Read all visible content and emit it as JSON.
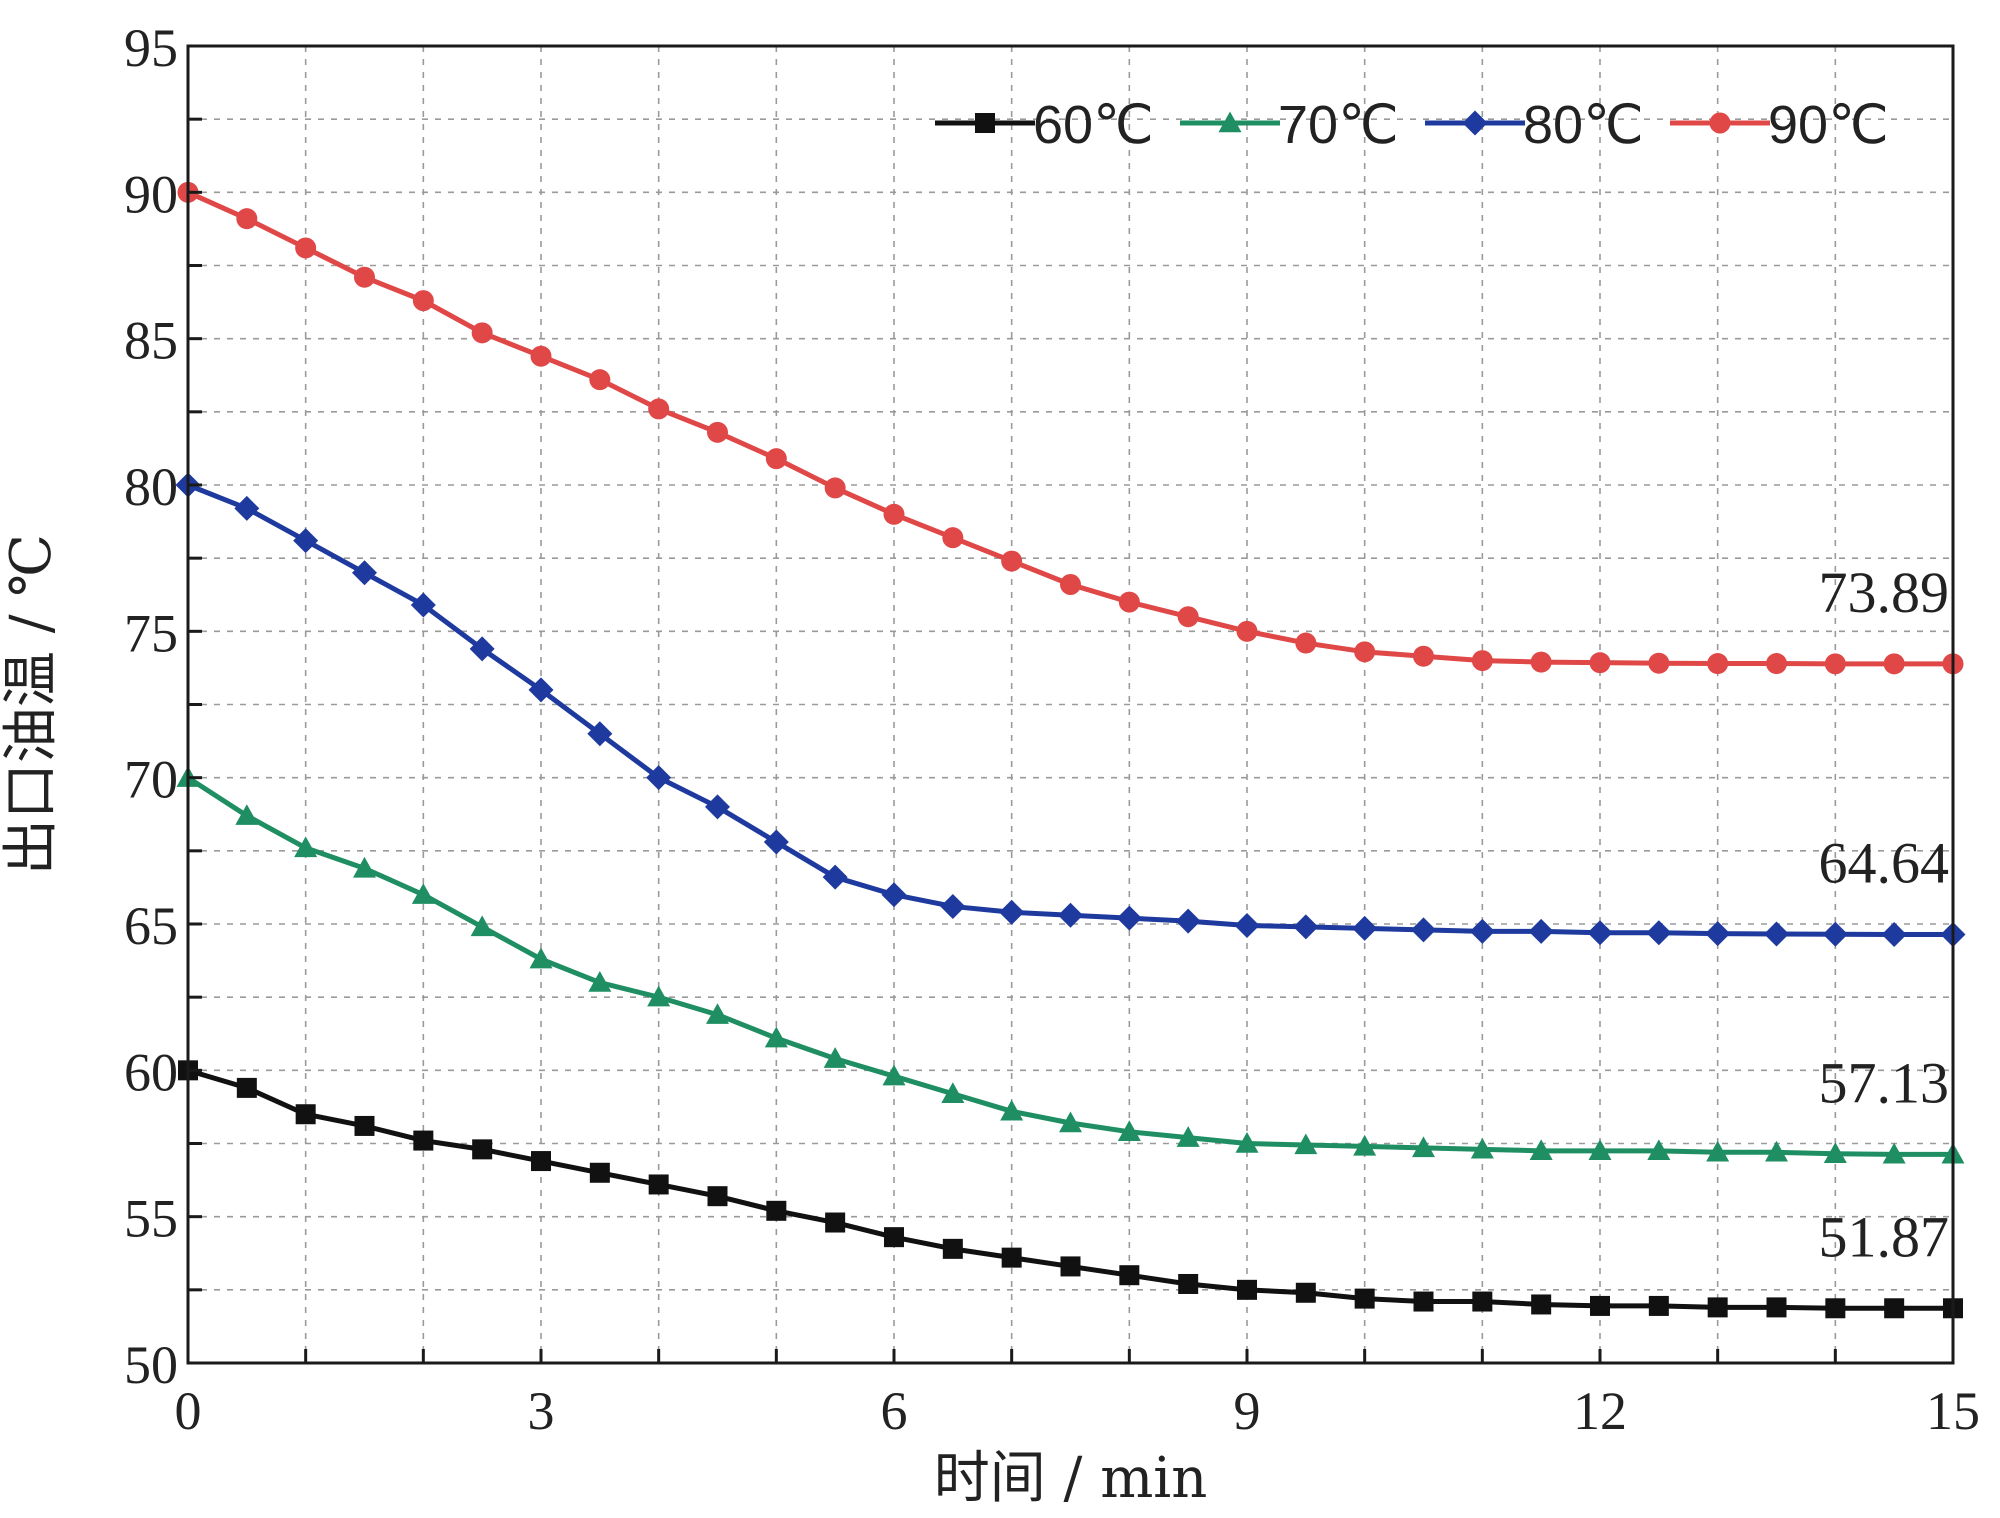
{
  "chart_data": {
    "type": "line",
    "xlabel": "时间 / min",
    "ylabel": "出口油温 / ℃",
    "xlim": [
      0,
      15
    ],
    "ylim": [
      50,
      95
    ],
    "xticks": [
      "0",
      "3",
      "6",
      "9",
      "12",
      "15"
    ],
    "yticks": [
      "50",
      "55",
      "60",
      "65",
      "70",
      "75",
      "80",
      "85",
      "90",
      "95"
    ],
    "grid": true,
    "grid_x_step": 1,
    "grid_y_step": 2.5,
    "legend_position": "top-right",
    "x": [
      0,
      0.5,
      1,
      1.5,
      2,
      2.5,
      3,
      3.5,
      4,
      4.5,
      5,
      5.5,
      6,
      6.5,
      7,
      7.5,
      8,
      8.5,
      9,
      9.5,
      10,
      10.5,
      11,
      11.5,
      12,
      12.5,
      13,
      13.5,
      14,
      14.5,
      15
    ],
    "series": [
      {
        "name": "60℃",
        "color": "#111111",
        "marker": "square",
        "end_label": "51.87",
        "values": [
          60.0,
          59.4,
          58.5,
          58.1,
          57.6,
          57.3,
          56.9,
          56.5,
          56.1,
          55.7,
          55.2,
          54.8,
          54.3,
          53.9,
          53.6,
          53.3,
          53.0,
          52.7,
          52.5,
          52.4,
          52.2,
          52.1,
          52.1,
          52.0,
          51.95,
          51.95,
          51.9,
          51.9,
          51.87,
          51.87,
          51.87
        ]
      },
      {
        "name": "70℃",
        "color": "#1f8f63",
        "marker": "triangle",
        "end_label": "57.13",
        "values": [
          70.0,
          68.7,
          67.6,
          66.9,
          66.0,
          64.9,
          63.8,
          63.0,
          62.5,
          61.9,
          61.1,
          60.4,
          59.8,
          59.2,
          58.6,
          58.2,
          57.9,
          57.7,
          57.5,
          57.45,
          57.4,
          57.35,
          57.3,
          57.25,
          57.25,
          57.25,
          57.2,
          57.2,
          57.15,
          57.13,
          57.13
        ]
      },
      {
        "name": "80℃",
        "color": "#1f3a9e",
        "marker": "diamond",
        "end_label": "64.64",
        "values": [
          80.0,
          79.2,
          78.1,
          77.0,
          75.9,
          74.4,
          73.0,
          71.5,
          70.0,
          69.0,
          67.8,
          66.6,
          66.0,
          65.6,
          65.4,
          65.3,
          65.2,
          65.1,
          64.95,
          64.9,
          64.85,
          64.8,
          64.75,
          64.75,
          64.7,
          64.7,
          64.67,
          64.66,
          64.65,
          64.64,
          64.64
        ]
      },
      {
        "name": "90℃",
        "color": "#e04848",
        "marker": "circle",
        "end_label": "73.89",
        "values": [
          90.0,
          89.1,
          88.1,
          87.1,
          86.3,
          85.2,
          84.4,
          83.6,
          82.6,
          81.8,
          80.9,
          79.9,
          79.0,
          78.2,
          77.4,
          76.6,
          76.0,
          75.5,
          75.0,
          74.6,
          74.3,
          74.15,
          74.0,
          73.95,
          73.93,
          73.91,
          73.9,
          73.9,
          73.89,
          73.89,
          73.89
        ]
      }
    ]
  }
}
